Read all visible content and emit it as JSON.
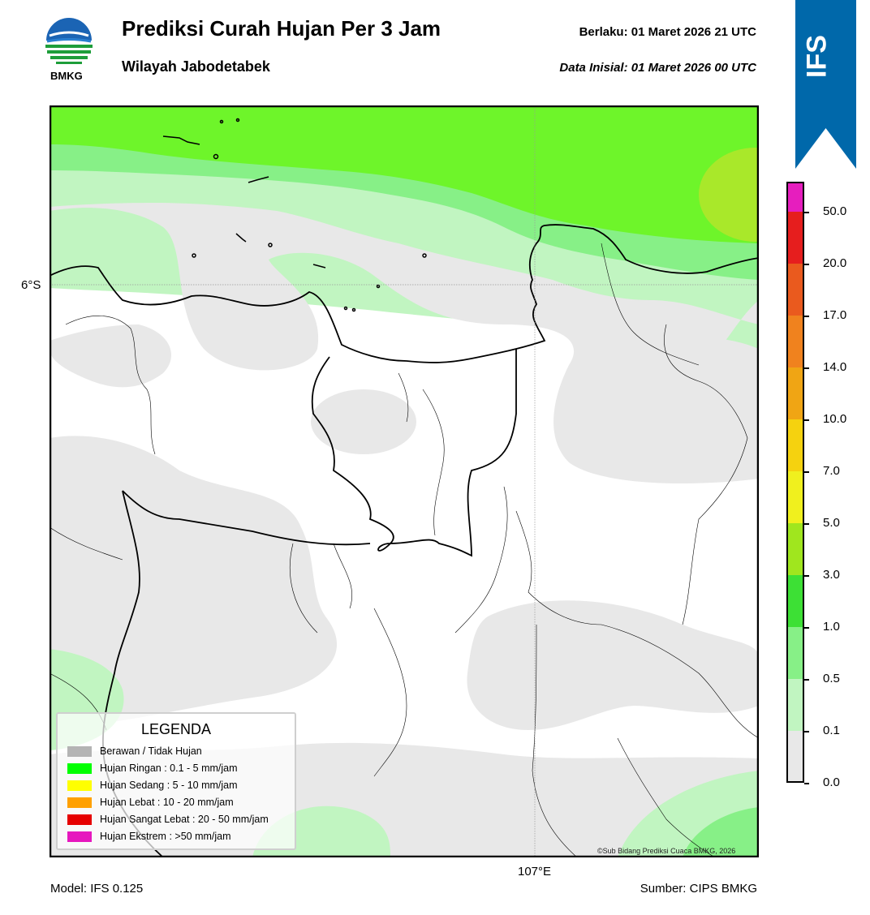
{
  "header": {
    "title": "Prediksi Curah Hujan Per 3 Jam",
    "subtitle": "Wilayah Jabodetabek",
    "valid_time": "Berlaku:  01 Maret 2026 21 UTC",
    "initial_time": "Data Inisial:  01 Maret 2026 00 UTC",
    "logo_text": "BMKG"
  },
  "banner": {
    "text": "IFS",
    "color": "#0068aa"
  },
  "map": {
    "lat_label": "6°S",
    "lon_label": "107°E",
    "copyright": "©Sub Bidang Prediksi Cuaca BMKG, 2026",
    "background_color": "#ffffff"
  },
  "legend": {
    "title": "LEGENDA",
    "items": [
      {
        "label": "Berawan / Tidak Hujan",
        "color": "#b4b4b4"
      },
      {
        "label": "Hujan Ringan : 0.1 - 5 mm/jam",
        "color": "#00ff00"
      },
      {
        "label": "Hujan Sedang : 5 - 10 mm/jam",
        "color": "#ffff00"
      },
      {
        "label": "Hujan Lebat : 10 - 20 mm/jam",
        "color": "#ffa000"
      },
      {
        "label": "Hujan Sangat Lebat : 20 - 50 mm/jam",
        "color": "#e60000"
      },
      {
        "label": "Hujan Ekstrem : >50 mm/jam",
        "color": "#e617be"
      }
    ]
  },
  "colorbar": {
    "labels": [
      "0.0",
      "0.1",
      "0.5",
      "1.0",
      "3.0",
      "5.0",
      "7.0",
      "10.0",
      "14.0",
      "17.0",
      "20.0",
      "50.0"
    ],
    "colors": [
      "#e8e8e8",
      "#c1f5c1",
      "#87f087",
      "#3de035",
      "#a0e61e",
      "#f0f01e",
      "#f5d20f",
      "#f0a514",
      "#f0821e",
      "#ea5a1e",
      "#e61e1e",
      "#e61ebe"
    ]
  },
  "footer": {
    "model": "Model: IFS 0.125",
    "source": "Sumber: CIPS BMKG"
  }
}
